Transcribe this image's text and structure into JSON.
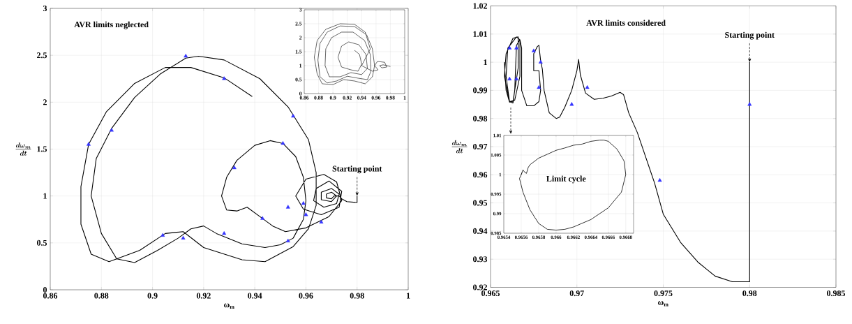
{
  "chart_data": [
    {
      "type": "line",
      "xlabel": "ω$_{m}$",
      "ylabel": "\\boldsymbol{\\frac{d\\omega_{m}}{dt}}",
      "xlim": [
        0.86,
        1
      ],
      "ylim": [
        0,
        3
      ],
      "xticks": [
        0.86,
        0.88,
        0.9,
        0.92,
        0.94,
        0.96,
        0.98,
        1
      ],
      "yticks": [
        0,
        0.5,
        1,
        1.5,
        2,
        2.5,
        3
      ],
      "grid": true,
      "annotations": [
        "AVR limits neglected",
        {
          "text": "Starting point",
          "x": 0.98,
          "y": 1
        }
      ],
      "series": [
        {
          "type": "line",
          "color": "#000000",
          "x": [
            0.98,
            0.98,
            0.976,
            0.974,
            0.973,
            0.971,
            0.97,
            0.968,
            0.968,
            0.97,
            0.972,
            0.97,
            0.966,
            0.966,
            0.97,
            0.973,
            0.972,
            0.967,
            0.963,
            0.964,
            0.969,
            0.974,
            0.973,
            0.966,
            0.959,
            0.956,
            0.96,
            0.967,
            0.972,
            0.974,
            0.969,
            0.96,
            0.952,
            0.947,
            0.943,
            0.937,
            0.933,
            0.929,
            0.927,
            0.929,
            0.933,
            0.94,
            0.946,
            0.951,
            0.956,
            0.959,
            0.96,
            0.959,
            0.955,
            0.95,
            0.944,
            0.935,
            0.925,
            0.92,
            0.915,
            0.91,
            0.902,
            0.893,
            0.886,
            0.88,
            0.876,
            0.878,
            0.884,
            0.893,
            0.903,
            0.913,
            0.918,
            0.928,
            0.942,
            0.953,
            0.961,
            0.964,
            0.964,
            0.961,
            0.955,
            0.944,
            0.935,
            0.92,
            0.912,
            0.905,
            0.895,
            0.883,
            0.876,
            0.872,
            0.872,
            0.875,
            0.882,
            0.893,
            0.905,
            0.915,
            0.928,
            0.939
          ],
          "values": [
            1.0,
            0.93,
            0.94,
            0.97,
            1.0,
            1.0,
            0.97,
            0.98,
            1.02,
            1.04,
            1.0,
            0.94,
            0.96,
            1.04,
            1.08,
            1.02,
            0.92,
            0.88,
            0.95,
            1.08,
            1.16,
            1.05,
            0.88,
            0.8,
            0.86,
            1.0,
            1.18,
            1.23,
            1.15,
            0.95,
            0.78,
            0.66,
            0.62,
            0.68,
            0.76,
            0.88,
            0.84,
            0.85,
            1.0,
            1.2,
            1.38,
            1.54,
            1.59,
            1.56,
            1.42,
            1.2,
            0.95,
            0.75,
            0.55,
            0.48,
            0.45,
            0.49,
            0.6,
            0.68,
            0.65,
            0.55,
            0.42,
            0.29,
            0.33,
            0.6,
            1.0,
            1.4,
            1.72,
            2.05,
            2.3,
            2.47,
            2.49,
            2.45,
            2.25,
            1.95,
            1.6,
            1.25,
            0.9,
            0.65,
            0.46,
            0.3,
            0.32,
            0.45,
            0.62,
            0.6,
            0.42,
            0.3,
            0.38,
            0.7,
            1.1,
            1.55,
            1.9,
            2.2,
            2.37,
            2.37,
            2.26,
            2.06
          ]
        },
        {
          "type": "scatter",
          "marker": "triangle",
          "color": "#3333ff",
          "x": [
            0.875,
            0.884,
            0.913,
            0.928,
            0.955,
            0.932,
            0.951,
            0.959,
            0.96,
            0.953,
            0.943,
            0.966,
            0.953,
            0.928,
            0.912,
            0.904
          ],
          "values": [
            1.55,
            1.7,
            2.49,
            2.25,
            1.85,
            1.3,
            1.56,
            0.92,
            0.8,
            0.88,
            0.76,
            0.72,
            0.52,
            0.6,
            0.55,
            0.58
          ]
        }
      ]
    },
    {
      "type": "line",
      "xlim": [
        0.86,
        1
      ],
      "ylim": [
        0,
        3
      ],
      "xticks": [
        0.86,
        0.88,
        0.9,
        0.92,
        0.94,
        0.96,
        0.98,
        1
      ],
      "yticks": [
        0,
        0.5,
        1,
        1.5,
        2,
        2.5,
        3
      ],
      "grid": true,
      "series": [
        {
          "type": "line",
          "color": "#000000",
          "x": [
            0.98,
            0.975,
            0.97,
            0.965,
            0.968,
            0.975,
            0.972,
            0.962,
            0.958,
            0.963,
            0.955,
            0.94,
            0.952,
            0.945,
            0.93,
            0.91,
            0.89,
            0.878,
            0.874,
            0.878,
            0.885,
            0.9,
            0.915,
            0.93,
            0.945,
            0.955,
            0.958,
            0.955,
            0.947,
            0.93,
            0.91,
            0.892,
            0.882,
            0.879,
            0.882,
            0.892,
            0.905,
            0.92,
            0.935,
            0.948,
            0.953,
            0.952,
            0.944,
            0.928,
            0.912,
            0.898,
            0.89,
            0.889,
            0.895,
            0.91,
            0.925,
            0.94,
            0.948,
            0.946,
            0.936,
            0.922,
            0.912,
            0.907,
            0.912,
            0.925,
            0.935,
            0.94,
            0.937,
            0.93
          ],
          "values": [
            0.97,
            1.0,
            1.03,
            1.0,
            0.92,
            0.95,
            1.12,
            1.15,
            1.0,
            0.85,
            0.8,
            1.0,
            1.6,
            2.2,
            2.48,
            2.5,
            2.3,
            1.9,
            1.3,
            0.7,
            0.35,
            0.32,
            0.5,
            0.45,
            0.35,
            0.6,
            1.0,
            1.6,
            2.1,
            2.4,
            2.42,
            2.2,
            1.8,
            1.2,
            0.6,
            0.38,
            0.45,
            0.62,
            0.55,
            0.5,
            0.8,
            1.4,
            1.9,
            2.2,
            2.2,
            2.0,
            1.6,
            1.0,
            0.6,
            0.6,
            0.75,
            0.68,
            0.9,
            1.4,
            1.75,
            1.85,
            1.7,
            1.3,
            0.95,
            0.85,
            0.8,
            1.05,
            1.4,
            1.55
          ]
        }
      ]
    },
    {
      "type": "line",
      "xlabel": "ω$_{m}$",
      "ylabel": "\\boldsymbol{\\frac{d\\omega_{m}}{dt}}",
      "xlim": [
        0.965,
        0.985
      ],
      "ylim": [
        0.92,
        1.02
      ],
      "xticks": [
        0.965,
        0.97,
        0.975,
        0.98,
        0.985
      ],
      "yticks": [
        0.92,
        0.93,
        0.94,
        0.95,
        0.96,
        0.97,
        0.98,
        0.99,
        1,
        1.01,
        1.02
      ],
      "grid": true,
      "annotations": [
        "AVR limits considered",
        {
          "text": "Starting point",
          "x": 0.98,
          "y": 1
        }
      ],
      "series": [
        {
          "type": "line",
          "color": "#000000",
          "x": [
            0.98,
            0.98,
            0.979,
            0.978,
            0.977,
            0.976,
            0.975,
            0.9745,
            0.974,
            0.9735,
            0.973,
            0.9727,
            0.9725,
            0.972,
            0.9715,
            0.971,
            0.9705,
            0.9702,
            0.9701,
            0.97,
            0.9697,
            0.9693,
            0.969,
            0.9688,
            0.9684,
            0.9681,
            0.968,
            0.9679,
            0.9678,
            0.9677,
            0.9675,
            0.9675,
            0.9678,
            0.9679,
            0.9678,
            0.9675,
            0.9671,
            0.9668,
            0.9668,
            0.9667,
            0.9665,
            0.9664,
            0.9663,
            0.9661,
            0.9659,
            0.966,
            0.9665,
            0.9667,
            0.9667,
            0.9664,
            0.9661,
            0.9658,
            0.9659,
            0.9663,
            0.9666,
            0.9666,
            0.9663,
            0.9661,
            0.9659,
            0.9658
          ],
          "values": [
            1.0,
            0.922,
            0.922,
            0.924,
            0.929,
            0.936,
            0.946,
            0.957,
            0.966,
            0.975,
            0.982,
            0.9885,
            0.9893,
            0.988,
            0.9872,
            0.9868,
            0.989,
            0.9955,
            1.001,
            0.997,
            0.99,
            0.984,
            0.9805,
            0.98,
            0.982,
            0.99,
            0.9975,
            1.0005,
            1.006,
            1.0055,
            1.003,
            0.997,
            0.997,
            0.99,
            0.986,
            0.9845,
            0.9845,
            0.99,
            1.005,
            1.008,
            1.006,
            0.99,
            0.9855,
            0.986,
            0.995,
            1.005,
            1.009,
            1.008,
            0.995,
            0.9865,
            0.986,
            0.995,
            1.003,
            1.0085,
            1.009,
            0.998,
            0.986,
            0.9858,
            0.99,
            1.0
          ]
        },
        {
          "type": "scatter",
          "marker": "triangle",
          "color": "#3333ff",
          "x": [
            0.9661,
            0.9665,
            0.9661,
            0.9665,
            0.9675,
            0.9679,
            0.9678,
            0.9697,
            0.9706,
            0.9748,
            0.98
          ],
          "values": [
            1.005,
            1.005,
            0.994,
            0.994,
            1.004,
            1.0,
            0.991,
            0.985,
            0.991,
            0.958,
            0.985
          ]
        }
      ]
    },
    {
      "type": "line",
      "xlim": [
        0.9654,
        0.96689
      ],
      "ylim": [
        0.985,
        1.01
      ],
      "xticks": [
        0.9654,
        0.9656,
        0.9658,
        0.966,
        0.9662,
        0.9664,
        0.9666,
        0.9668
      ],
      "yticks": [
        0.985,
        0.99,
        0.995,
        1,
        1.005,
        1.01
      ],
      "grid": true,
      "annotations": [
        "Limit cycle"
      ],
      "series": [
        {
          "type": "line",
          "color": "#000000",
          "x": [
            0.9656,
            0.96562,
            0.96564,
            0.96566,
            0.96568,
            0.9657,
            0.9658,
            0.9659,
            0.966,
            0.9661,
            0.9662,
            0.9663,
            0.9664,
            0.9665,
            0.96655,
            0.9666,
            0.9667,
            0.96678,
            0.9668,
            0.96675,
            0.9666,
            0.9664,
            0.9662,
            0.9661,
            0.966,
            0.9659,
            0.9658,
            0.9657,
            0.96562,
            0.96558,
            0.96561
          ],
          "values": [
            1.0,
            1.0012,
            1.0006,
            1.0003,
            1.0018,
            1.0025,
            1.0042,
            1.0052,
            1.0062,
            1.0068,
            1.0075,
            1.0078,
            1.0085,
            1.0088,
            1.0088,
            1.0085,
            1.0065,
            1.0035,
            1.0,
            0.9955,
            0.9915,
            0.9885,
            0.9866,
            0.986,
            0.9858,
            0.986,
            0.9875,
            0.991,
            0.9955,
            0.999,
            1.0005
          ]
        }
      ]
    }
  ]
}
